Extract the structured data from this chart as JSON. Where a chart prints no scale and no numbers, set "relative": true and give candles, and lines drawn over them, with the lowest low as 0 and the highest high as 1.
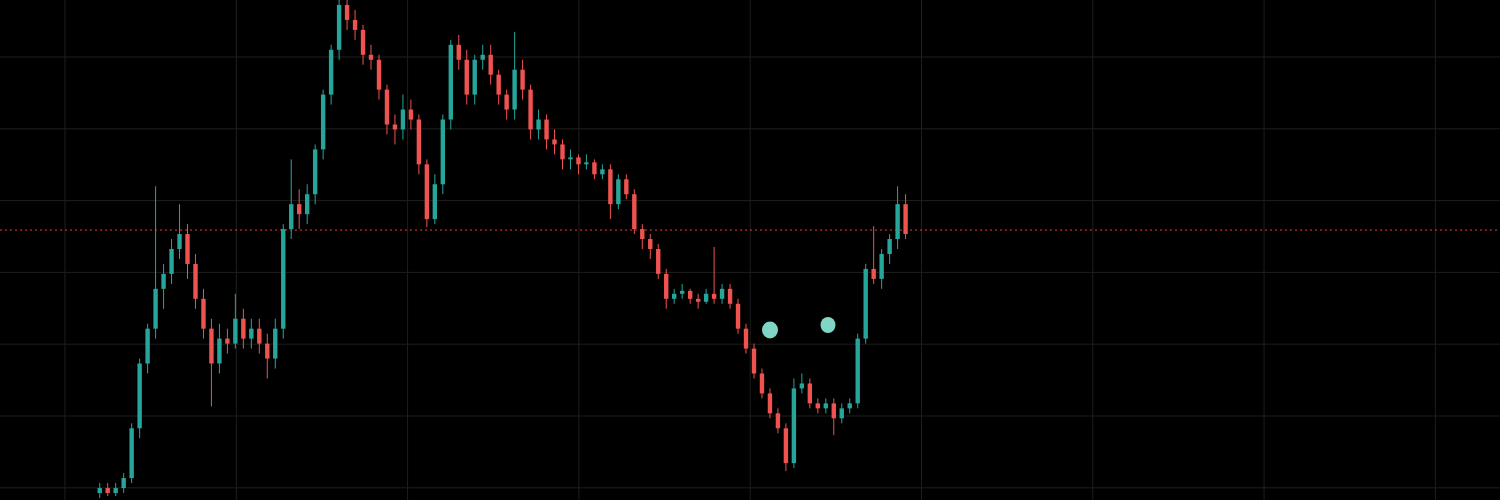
{
  "chart_data": {
    "type": "candlestick",
    "relative": true,
    "grid": true,
    "categories": [
      null,
      null,
      null,
      null,
      null,
      null,
      null,
      null,
      null,
      null,
      null,
      null,
      null,
      null,
      null,
      null,
      null,
      null,
      null,
      null,
      null,
      null,
      null,
      null,
      null,
      null,
      null,
      null,
      null,
      null,
      null,
      null,
      null,
      null,
      null,
      null,
      null,
      null,
      null,
      null,
      null,
      null,
      null,
      null,
      null,
      null,
      null,
      null,
      null,
      null,
      null,
      null,
      null,
      null,
      null,
      null,
      null,
      null,
      null,
      null,
      null,
      null,
      null,
      null,
      null,
      null,
      null,
      null,
      null,
      null,
      null,
      null,
      null,
      null,
      null,
      null,
      null,
      null,
      null,
      null,
      null,
      null,
      null,
      null,
      null,
      null,
      null,
      null,
      null,
      null,
      null,
      null,
      null,
      null,
      null,
      null,
      null,
      null,
      null,
      null,
      null,
      null,
      null,
      null,
      null,
      null,
      null,
      null,
      null,
      null,
      null,
      null,
      null,
      null,
      null,
      null,
      null,
      null,
      null,
      null,
      null,
      null,
      null,
      null,
      null,
      null,
      null,
      null,
      null,
      null,
      null,
      null,
      null,
      null,
      null,
      null,
      null,
      null,
      null,
      null,
      null,
      null,
      null,
      null,
      null,
      null,
      null,
      null,
      null,
      null,
      null,
      null,
      null,
      null,
      null,
      null,
      null,
      null,
      null,
      null,
      null,
      null,
      null,
      null,
      null,
      null,
      null,
      null,
      null,
      null,
      null,
      null,
      null,
      null,
      null,
      null,
      null,
      null,
      null,
      null,
      null,
      null,
      null,
      null,
      null,
      null,
      null,
      null
    ],
    "ohlc": [
      null,
      null,
      null,
      null,
      null,
      null,
      null,
      null,
      null,
      null,
      null,
      null,
      [
        0.01,
        0.03,
        0,
        0.02
      ],
      [
        0.02,
        0.03,
        0.004,
        0.01
      ],
      [
        0.01,
        0.03,
        0.004,
        0.02
      ],
      [
        0.02,
        0.05,
        0.01,
        0.04
      ],
      [
        0.04,
        0.15,
        0.03,
        0.14
      ],
      [
        0.14,
        0.28,
        0.12,
        0.27
      ],
      [
        0.27,
        0.35,
        0.25,
        0.34
      ],
      [
        0.34,
        0.626,
        0.32,
        0.42
      ],
      [
        0.42,
        0.47,
        0.38,
        0.45
      ],
      [
        0.45,
        0.52,
        0.43,
        0.5
      ],
      [
        0.5,
        0.59,
        0.48,
        0.53
      ],
      [
        0.53,
        0.55,
        0.44,
        0.47
      ],
      [
        0.47,
        0.49,
        0.38,
        0.4
      ],
      [
        0.4,
        0.42,
        0.32,
        0.34
      ],
      [
        0.34,
        0.36,
        0.184,
        0.27
      ],
      [
        0.27,
        0.35,
        0.25,
        0.32
      ],
      [
        0.32,
        0.34,
        0.29,
        0.31
      ],
      [
        0.31,
        0.41,
        0.3,
        0.36
      ],
      [
        0.36,
        0.38,
        0.3,
        0.32
      ],
      [
        0.32,
        0.36,
        0.3,
        0.34
      ],
      [
        0.34,
        0.36,
        0.29,
        0.31
      ],
      [
        0.31,
        0.33,
        0.24,
        0.28
      ],
      [
        0.28,
        0.36,
        0.26,
        0.34
      ],
      [
        0.34,
        0.55,
        0.32,
        0.54
      ],
      [
        0.54,
        0.68,
        0.52,
        0.59
      ],
      [
        0.59,
        0.62,
        0.54,
        0.57
      ],
      [
        0.57,
        0.63,
        0.55,
        0.61
      ],
      [
        0.61,
        0.71,
        0.59,
        0.7
      ],
      [
        0.7,
        0.82,
        0.68,
        0.81
      ],
      [
        0.81,
        0.91,
        0.79,
        0.9
      ],
      [
        0.9,
        1,
        0.88,
        0.99
      ],
      [
        0.99,
        1,
        0.94,
        0.96
      ],
      [
        0.96,
        0.98,
        0.92,
        0.94
      ],
      [
        0.94,
        0.95,
        0.87,
        0.89
      ],
      [
        0.89,
        0.91,
        0.86,
        0.88
      ],
      [
        0.88,
        0.89,
        0.8,
        0.82
      ],
      [
        0.82,
        0.83,
        0.73,
        0.75
      ],
      [
        0.75,
        0.77,
        0.71,
        0.74
      ],
      [
        0.74,
        0.81,
        0.72,
        0.78
      ],
      [
        0.78,
        0.8,
        0.74,
        0.76
      ],
      [
        0.76,
        0.77,
        0.65,
        0.67
      ],
      [
        0.67,
        0.68,
        0.544,
        0.56
      ],
      [
        0.56,
        0.65,
        0.55,
        0.63
      ],
      [
        0.63,
        0.77,
        0.61,
        0.76
      ],
      [
        0.76,
        0.92,
        0.74,
        0.91
      ],
      [
        0.91,
        0.93,
        0.86,
        0.88
      ],
      [
        0.88,
        0.9,
        0.79,
        0.81
      ],
      [
        0.81,
        0.89,
        0.79,
        0.88
      ],
      [
        0.88,
        0.91,
        0.86,
        0.89
      ],
      [
        0.89,
        0.91,
        0.83,
        0.85
      ],
      [
        0.85,
        0.86,
        0.79,
        0.81
      ],
      [
        0.81,
        0.82,
        0.76,
        0.78
      ],
      [
        0.78,
        0.936,
        0.76,
        0.86
      ],
      [
        0.86,
        0.88,
        0.8,
        0.82
      ],
      [
        0.82,
        0.83,
        0.72,
        0.74
      ],
      [
        0.74,
        0.78,
        0.72,
        0.76
      ],
      [
        0.76,
        0.77,
        0.7,
        0.72
      ],
      [
        0.72,
        0.74,
        0.69,
        0.71
      ],
      [
        0.71,
        0.72,
        0.66,
        0.68
      ],
      [
        0.68,
        0.7,
        0.66,
        0.684
      ],
      [
        0.684,
        0.69,
        0.65,
        0.67
      ],
      [
        0.67,
        0.69,
        0.66,
        0.674
      ],
      [
        0.674,
        0.68,
        0.64,
        0.65
      ],
      [
        0.65,
        0.67,
        0.64,
        0.66
      ],
      [
        0.66,
        0.67,
        0.56,
        0.59
      ],
      [
        0.59,
        0.65,
        0.58,
        0.64
      ],
      [
        0.64,
        0.65,
        0.6,
        0.61
      ],
      [
        0.61,
        0.62,
        0.53,
        0.54
      ],
      [
        0.54,
        0.55,
        0.5,
        0.52
      ],
      [
        0.52,
        0.53,
        0.48,
        0.5
      ],
      [
        0.5,
        0.51,
        0.44,
        0.45
      ],
      [
        0.45,
        0.46,
        0.38,
        0.4
      ],
      [
        0.4,
        0.42,
        0.39,
        0.41
      ],
      [
        0.41,
        0.43,
        0.4,
        0.416
      ],
      [
        0.416,
        0.42,
        0.39,
        0.4
      ],
      [
        0.4,
        0.41,
        0.38,
        0.394
      ],
      [
        0.394,
        0.42,
        0.39,
        0.41
      ],
      [
        0.41,
        0.504,
        0.39,
        0.4
      ],
      [
        0.4,
        0.43,
        0.39,
        0.42
      ],
      [
        0.42,
        0.43,
        0.38,
        0.39
      ],
      [
        0.39,
        0.4,
        0.33,
        0.34
      ],
      [
        0.34,
        0.35,
        0.29,
        0.3
      ],
      [
        0.3,
        0.31,
        0.24,
        0.25
      ],
      [
        0.25,
        0.26,
        0.2,
        0.21
      ],
      [
        0.21,
        0.22,
        0.16,
        0.17
      ],
      [
        0.17,
        0.18,
        0.13,
        0.14
      ],
      [
        0.14,
        0.15,
        0.054,
        0.07
      ],
      [
        0.07,
        0.24,
        0.06,
        0.22
      ],
      [
        0.22,
        0.25,
        0.21,
        0.23
      ],
      [
        0.23,
        0.24,
        0.18,
        0.19
      ],
      [
        0.19,
        0.2,
        0.17,
        0.18
      ],
      [
        0.18,
        0.2,
        0.17,
        0.19
      ],
      [
        0.19,
        0.2,
        0.126,
        0.16
      ],
      [
        0.16,
        0.19,
        0.15,
        0.18
      ],
      [
        0.18,
        0.2,
        0.17,
        0.19
      ],
      [
        0.19,
        0.33,
        0.18,
        0.32
      ],
      [
        0.32,
        0.47,
        0.31,
        0.46
      ],
      [
        0.46,
        0.546,
        0.43,
        0.44
      ],
      [
        0.44,
        0.5,
        0.42,
        0.49
      ],
      [
        0.49,
        0.53,
        0.47,
        0.52
      ],
      [
        0.52,
        0.626,
        0.5,
        0.59
      ],
      [
        0.59,
        0.61,
        0.52,
        0.53
      ],
      null,
      null,
      null,
      null,
      null,
      null,
      null,
      null,
      null,
      null,
      null,
      null,
      null,
      null,
      null,
      null,
      null,
      null,
      null,
      null,
      null,
      null,
      null,
      null,
      null,
      null,
      null,
      null,
      null,
      null,
      null,
      null,
      null,
      null,
      null,
      null,
      null,
      null,
      null,
      null,
      null,
      null,
      null,
      null,
      null,
      null,
      null,
      null,
      null,
      null,
      null,
      null,
      null,
      null,
      null,
      null,
      null,
      null,
      null,
      null,
      null,
      null,
      null,
      null,
      null,
      null,
      null,
      null,
      null,
      null,
      null,
      null,
      null,
      null
    ],
    "ref_lines": [
      {
        "axis": "y",
        "value": 0.538,
        "color": "#e0413f",
        "line_style": "dotted"
      }
    ]
  }
}
